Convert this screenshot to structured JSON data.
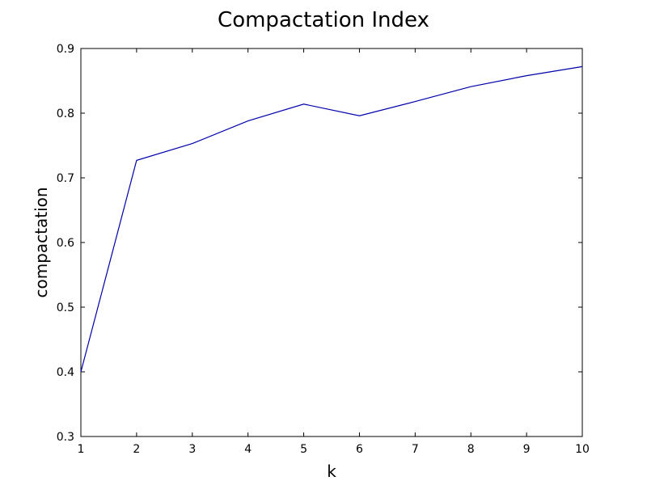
{
  "chart_data": {
    "type": "line",
    "title": "Compactation Index",
    "xlabel": "k",
    "ylabel": "compactation",
    "xlim": [
      1,
      10
    ],
    "ylim": [
      0.3,
      0.9
    ],
    "xticks": [
      "1",
      "2",
      "3",
      "4",
      "5",
      "6",
      "7",
      "8",
      "9",
      "10"
    ],
    "yticks": [
      "0.3",
      "0.4",
      "0.5",
      "0.6",
      "0.7",
      "0.8",
      "0.9"
    ],
    "grid": false,
    "series": [
      {
        "color": "#0000aa",
        "x": [
          1,
          2,
          3,
          4,
          5,
          6,
          7,
          8,
          9,
          10
        ],
        "y": [
          0.4,
          0.727,
          0.753,
          0.788,
          0.814,
          0.796,
          0.818,
          0.841,
          0.858,
          0.872
        ]
      }
    ]
  }
}
